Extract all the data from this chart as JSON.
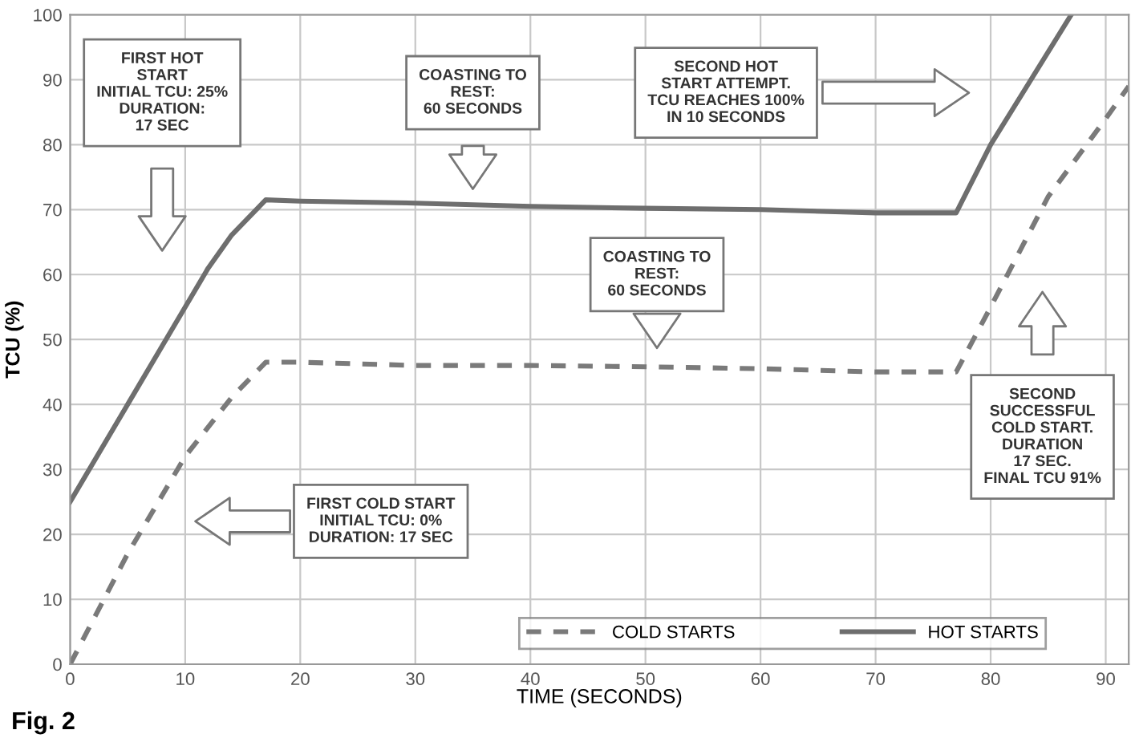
{
  "chart_data": {
    "type": "line",
    "xlabel": "TIME (SECONDS)",
    "ylabel": "TCU (%)",
    "xlim": [
      0,
      92
    ],
    "ylim": [
      0,
      100
    ],
    "xticks": [
      0,
      10,
      20,
      30,
      40,
      50,
      60,
      70,
      80,
      90
    ],
    "yticks": [
      0,
      10,
      20,
      30,
      40,
      50,
      60,
      70,
      80,
      90,
      100
    ],
    "grid": true,
    "legend": "bottom right",
    "series": [
      {
        "name": "COLD STARTS",
        "color": "#7a7a7a",
        "line_style": "dashed",
        "x": [
          0,
          5,
          10,
          14,
          17,
          20,
          30,
          40,
          50,
          60,
          70,
          77,
          80,
          85,
          90,
          92
        ],
        "values": [
          0,
          17,
          32,
          41,
          46.5,
          46.5,
          46,
          46,
          45.8,
          45.5,
          45,
          45,
          55,
          72,
          84,
          89
        ]
      },
      {
        "name": "HOT STARTS",
        "color": "#6e6e6e",
        "line_style": "solid",
        "x": [
          0,
          5,
          10,
          12,
          14,
          17,
          20,
          30,
          40,
          50,
          60,
          70,
          77,
          80,
          87
        ],
        "values": [
          25,
          40,
          55,
          61,
          66,
          71.5,
          71.3,
          71,
          70.5,
          70.2,
          70,
          69.5,
          69.5,
          80,
          100
        ]
      }
    ],
    "annotations": [
      "FIRST HOT\nSTART\nINITIAL TCU: 25%\nDURATION:\n17 SEC",
      "COASTING TO\nREST:\n60 SECONDS",
      "SECOND HOT\nSTART ATTEMPT.\nTCU REACHES 100%\nIN 10 SECONDS",
      "COASTING TO\nREST:\n60 SECONDS",
      "FIRST COLD START\nINITIAL TCU: 0%\nDURATION: 17 SEC",
      "SECOND\nSUCCESSFUL\nCOLD START.\nDURATION\n17 SEC.\nFINAL TCU 91%",
      "Fig. 2"
    ]
  }
}
